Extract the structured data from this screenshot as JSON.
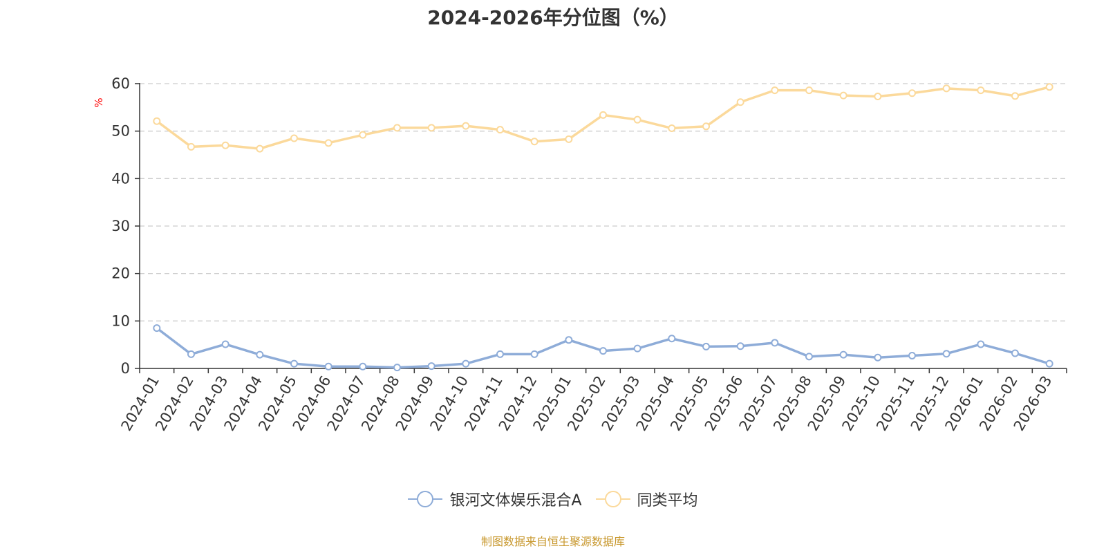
{
  "colors": {
    "series0": "#8eacd8",
    "series1": "#fbd99b",
    "unit": "#ff0000",
    "source": "#c8982e"
  },
  "chart_data": {
    "type": "line",
    "title": "2024-2026年分位图（%）",
    "ylabel": "%",
    "xlabel": "",
    "ylim": [
      0,
      60
    ],
    "yticks": [
      0,
      10,
      20,
      30,
      40,
      50,
      60
    ],
    "grid": true,
    "legend_position": "bottom",
    "categories": [
      "2024-01",
      "2024-02",
      "2024-03",
      "2024-04",
      "2024-05",
      "2024-06",
      "2024-07",
      "2024-08",
      "2024-09",
      "2024-10",
      "2024-11",
      "2024-12",
      "2025-01",
      "2025-02",
      "2025-03",
      "2025-04",
      "2025-05",
      "2025-06",
      "2025-07",
      "2025-08",
      "2025-09",
      "2025-10",
      "2025-11",
      "2025-12",
      "2026-01",
      "2026-02",
      "2026-03"
    ],
    "series": [
      {
        "name": "银河文体娱乐混合A",
        "values": [
          8.5,
          3.0,
          5.1,
          2.9,
          1.0,
          0.4,
          0.4,
          0.2,
          0.5,
          1.0,
          3.0,
          3.0,
          6.0,
          3.7,
          4.2,
          6.3,
          4.6,
          4.7,
          5.4,
          2.5,
          2.9,
          2.3,
          2.7,
          3.1,
          5.1,
          3.2,
          1.0
        ]
      },
      {
        "name": "同类平均",
        "values": [
          52.1,
          46.7,
          47.0,
          46.3,
          48.5,
          47.5,
          49.2,
          50.7,
          50.7,
          51.1,
          50.3,
          47.8,
          48.3,
          53.4,
          52.4,
          50.6,
          51.0,
          56.1,
          58.6,
          58.6,
          57.5,
          57.3,
          58.0,
          59.0,
          58.6,
          57.4,
          59.3
        ]
      }
    ]
  },
  "footer": {
    "source": "制图数据来自恒生聚源数据库"
  }
}
